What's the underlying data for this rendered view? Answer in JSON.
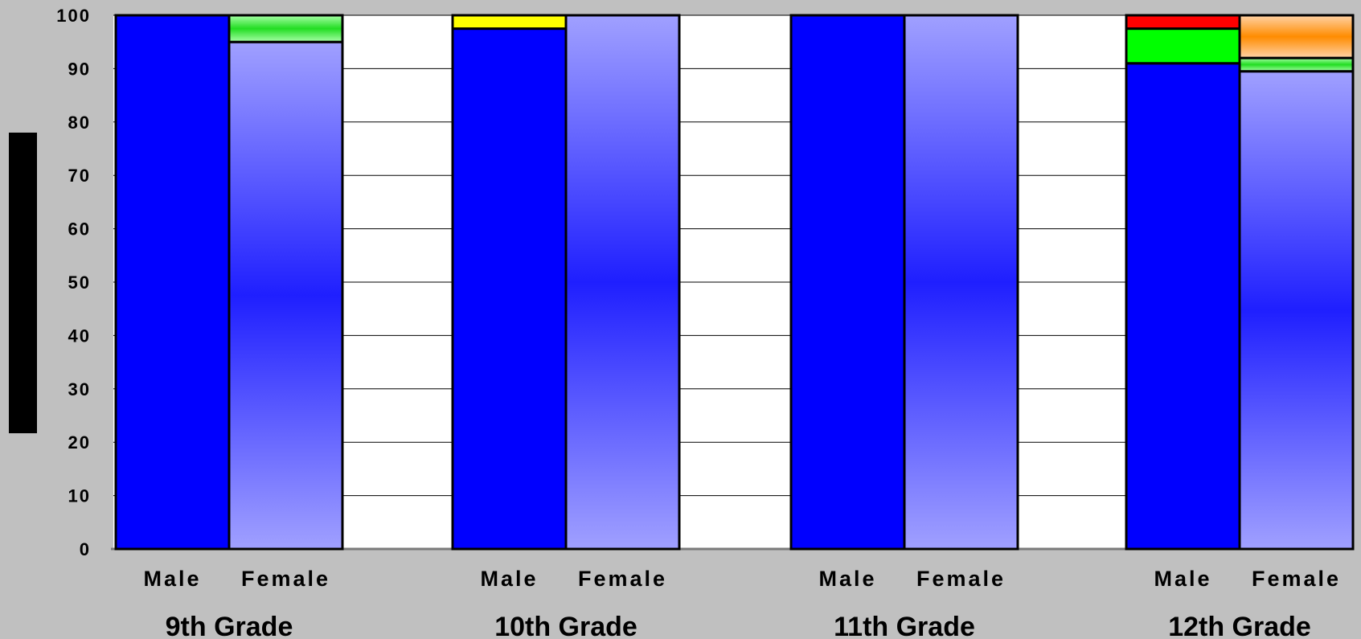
{
  "chart_data": {
    "type": "stacked-bar",
    "ylim": [
      0,
      100
    ],
    "yticks": [
      "0",
      "10",
      "20",
      "30",
      "40",
      "50",
      "60",
      "70",
      "80",
      "90",
      "100"
    ],
    "grid": true,
    "groups": [
      {
        "label": "9th Grade",
        "bars": [
          {
            "label": "Male",
            "segments": [
              {
                "value": 100,
                "color": "#0000ff",
                "style": "solid"
              }
            ]
          },
          {
            "label": "Female",
            "segments": [
              {
                "value": 95,
                "color": "#0000ff",
                "style": "gradient"
              },
              {
                "value": 5,
                "color": "#00dd00",
                "style": "gradient"
              }
            ]
          }
        ]
      },
      {
        "label": "10th Grade",
        "bars": [
          {
            "label": "Male",
            "segments": [
              {
                "value": 97.5,
                "color": "#0000ff",
                "style": "solid"
              },
              {
                "value": 2.5,
                "color": "#ffff00",
                "style": "solid"
              }
            ]
          },
          {
            "label": "Female",
            "segments": [
              {
                "value": 100,
                "color": "#0000ff",
                "style": "gradient"
              }
            ]
          }
        ]
      },
      {
        "label": "11th Grade",
        "bars": [
          {
            "label": "Male",
            "segments": [
              {
                "value": 100,
                "color": "#0000ff",
                "style": "solid"
              }
            ]
          },
          {
            "label": "Female",
            "segments": [
              {
                "value": 100,
                "color": "#0000ff",
                "style": "gradient"
              }
            ]
          }
        ]
      },
      {
        "label": "12th Grade",
        "bars": [
          {
            "label": "Male",
            "segments": [
              {
                "value": 91,
                "color": "#0000ff",
                "style": "solid"
              },
              {
                "value": 6.5,
                "color": "#00ff00",
                "style": "solid"
              },
              {
                "value": 2.5,
                "color": "#ff0000",
                "style": "solid"
              }
            ]
          },
          {
            "label": "Female",
            "segments": [
              {
                "value": 89.5,
                "color": "#0000ff",
                "style": "gradient"
              },
              {
                "value": 2.5,
                "color": "#00dd00",
                "style": "gradient"
              },
              {
                "value": 8,
                "color": "#ff8c00",
                "style": "gradient"
              }
            ]
          }
        ]
      }
    ]
  }
}
